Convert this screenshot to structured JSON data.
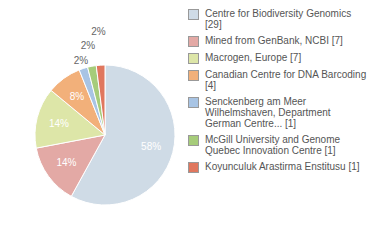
{
  "chart_data": {
    "type": "pie",
    "categories": [
      "Centre for Biodiversity Genomics [29]",
      "Mined from GenBank, NCBI [7]",
      "Macrogen, Europe [7]",
      "Canadian Centre for DNA Barcoding [4]",
      "Senckenberg am Meer Wilhelmshaven, Department German Centre... [1]",
      "McGill University and Genome Quebec Innovation Centre [1]",
      "Koyunculuk Arastirma Enstitusu [1]"
    ],
    "values": [
      58,
      14,
      14,
      8,
      2,
      2,
      2
    ],
    "value_labels": [
      "58%",
      "14%",
      "14%",
      "8%",
      "2%",
      "2%",
      "2%"
    ],
    "data_labels": true,
    "legend": "right",
    "colors": [
      "#cfdbe6",
      "#e3a9a5",
      "#dde6a8",
      "#f2b07a",
      "#a8c4e4",
      "#a6cc7a",
      "#e0775e"
    ]
  }
}
